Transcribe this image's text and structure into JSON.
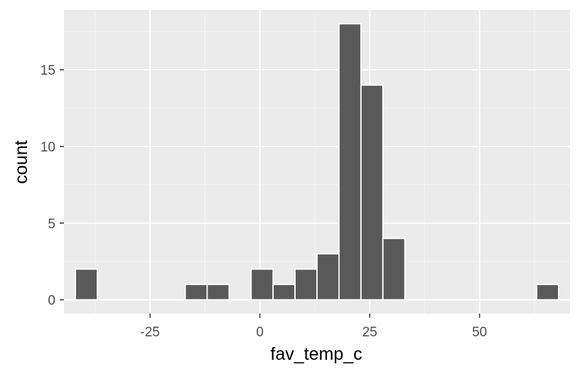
{
  "chart_data": {
    "type": "bar",
    "title": "",
    "xlabel": "fav_temp_c",
    "ylabel": "count",
    "xlim": [
      -44.6,
      70.6
    ],
    "ylim": [
      -0.9,
      18.9
    ],
    "x_ticks": [
      -25,
      0,
      25,
      50
    ],
    "x_tick_labels": [
      "-25",
      "0",
      "25",
      "50"
    ],
    "y_ticks": [
      0,
      5,
      10,
      15
    ],
    "y_tick_labels": [
      "0",
      "5",
      "10",
      "15"
    ],
    "grid": true,
    "legend": "none",
    "bin_width": 5,
    "bins": [
      {
        "x0": -42.0,
        "x1": -37.0,
        "count": 2
      },
      {
        "x0": -17.0,
        "x1": -12.0,
        "count": 1
      },
      {
        "x0": -12.0,
        "x1": -7.0,
        "count": 1
      },
      {
        "x0": -2.0,
        "x1": 3.0,
        "count": 2
      },
      {
        "x0": 3.0,
        "x1": 8.0,
        "count": 1
      },
      {
        "x0": 8.0,
        "x1": 13.0,
        "count": 2
      },
      {
        "x0": 13.0,
        "x1": 18.0,
        "count": 3
      },
      {
        "x0": 18.0,
        "x1": 23.0,
        "count": 18
      },
      {
        "x0": 23.0,
        "x1": 28.0,
        "count": 14
      },
      {
        "x0": 28.0,
        "x1": 33.0,
        "count": 4
      },
      {
        "x0": 63.0,
        "x1": 68.0,
        "count": 1
      }
    ],
    "colors": {
      "panel": "#EBEBEB",
      "grid_major": "#FFFFFF",
      "grid_minor": "#F5F5F5",
      "bar_fill": "#595959",
      "bar_stroke": "#FFFFFF",
      "axis_text": "#4D4D4D",
      "title_text": "#000000",
      "tick": "#333333"
    }
  }
}
